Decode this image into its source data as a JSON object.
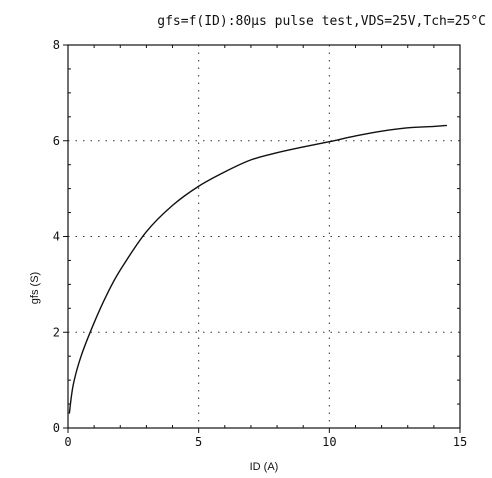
{
  "chart_data": {
    "type": "line",
    "title": "gfs=f(ID):80μs pulse test,VDS=25V,Tch=25°C",
    "xlabel": "ID (A)",
    "ylabel": "gfs (S)",
    "xlim": [
      0,
      15
    ],
    "ylim": [
      0,
      8
    ],
    "xticks": [
      0,
      5,
      10,
      15
    ],
    "yticks": [
      0,
      2,
      4,
      6,
      8
    ],
    "grid": true,
    "series": [
      {
        "x": [
          0.05,
          0.2,
          0.5,
          1.0,
          1.5,
          2.0,
          3.0,
          4.0,
          5.0,
          6.0,
          7.0,
          8.0,
          9.0,
          10.0,
          11.0,
          12.0,
          13.0,
          14.0,
          14.5
        ],
        "y": [
          0.3,
          0.9,
          1.5,
          2.2,
          2.8,
          3.3,
          4.1,
          4.65,
          5.05,
          5.35,
          5.6,
          5.75,
          5.87,
          5.98,
          6.1,
          6.2,
          6.27,
          6.3,
          6.32
        ]
      }
    ]
  }
}
